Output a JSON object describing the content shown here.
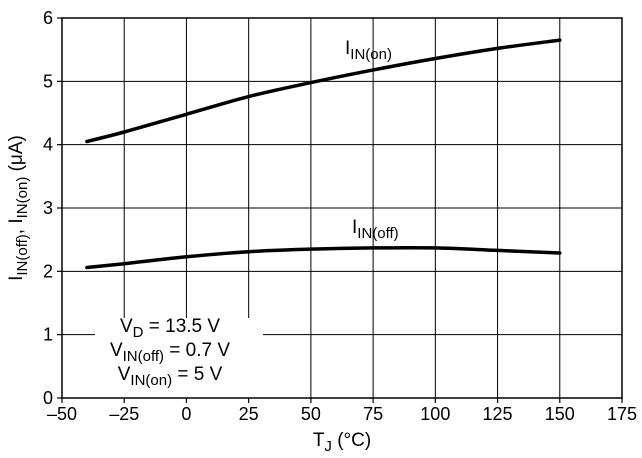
{
  "chart_data": {
    "type": "line",
    "title": "",
    "x_axis": {
      "range": [
        -50,
        175
      ],
      "ticks": [
        -50,
        -25,
        0,
        25,
        50,
        75,
        100,
        125,
        150,
        175
      ],
      "tick_labels": [
        "–50",
        "–25",
        "0",
        "25",
        "50",
        "75",
        "100",
        "125",
        "150",
        "175"
      ],
      "label_main": "T",
      "label_sub": "J",
      "label_tail": " (°C)"
    },
    "y_axis": {
      "range": [
        0,
        6
      ],
      "ticks": [
        0,
        1,
        2,
        3,
        4,
        5,
        6
      ],
      "tick_labels": [
        "0",
        "1",
        "2",
        "3",
        "4",
        "5",
        "6"
      ],
      "label_parts": [
        {
          "t": "I",
          "sub": false
        },
        {
          "t": "IN(off)",
          "sub": true
        },
        {
          "t": ", I",
          "sub": false
        },
        {
          "t": "IN(on)",
          "sub": true
        },
        {
          "t": " (μA)",
          "sub": false
        }
      ]
    },
    "grid": true,
    "series": [
      {
        "name_main": "I",
        "name_sub": "IN(on)",
        "x": [
          -40,
          -25,
          0,
          25,
          50,
          75,
          100,
          125,
          150
        ],
        "y": [
          4.05,
          4.2,
          4.48,
          4.76,
          4.98,
          5.18,
          5.36,
          5.52,
          5.65
        ]
      },
      {
        "name_main": "I",
        "name_sub": "IN(off)",
        "x": [
          -40,
          -25,
          0,
          25,
          50,
          75,
          100,
          125,
          150
        ],
        "y": [
          2.06,
          2.12,
          2.23,
          2.31,
          2.35,
          2.37,
          2.37,
          2.33,
          2.29
        ]
      }
    ],
    "annotations": [
      [
        {
          "t": "V",
          "sub": false
        },
        {
          "t": "D",
          "sub": true
        },
        {
          "t": " = 13.5 V",
          "sub": false
        }
      ],
      [
        {
          "t": "V",
          "sub": false
        },
        {
          "t": "IN(off)",
          "sub": true
        },
        {
          "t": " = 0.7 V",
          "sub": false
        }
      ],
      [
        {
          "t": "V",
          "sub": false
        },
        {
          "t": "IN(on)",
          "sub": true
        },
        {
          "t": " = 5 V",
          "sub": false
        }
      ]
    ]
  }
}
